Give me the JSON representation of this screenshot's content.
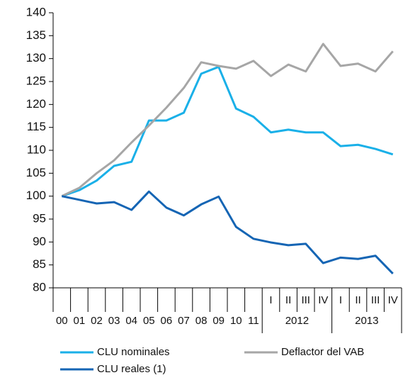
{
  "chart_data": {
    "type": "line",
    "categories": [
      "00",
      "01",
      "02",
      "03",
      "04",
      "05",
      "06",
      "07",
      "08",
      "09",
      "10",
      "11",
      "I",
      "II",
      "III",
      "IV",
      "I",
      "II",
      "III",
      "IV"
    ],
    "category_groups": [
      {
        "label": "2012",
        "count": 4
      },
      {
        "label": "2013",
        "count": 4
      }
    ],
    "series": [
      {
        "name": "CLU nominales",
        "color": "#1ab0e8",
        "values": [
          100,
          101.3,
          103.4,
          106.6,
          107.5,
          116.5,
          116.5,
          118.2,
          126.7,
          128.2,
          119.1,
          117.3,
          113.9,
          114.5,
          113.9,
          113.9,
          110.9,
          111.2,
          110.3,
          109.1
        ]
      },
      {
        "name": "Deflactor del VAB",
        "color": "#a6a6a6",
        "values": [
          100,
          101.8,
          105,
          107.8,
          111.7,
          115.4,
          119.3,
          123.6,
          129.2,
          128.4,
          127.8,
          129.5,
          126.2,
          128.7,
          127.2,
          133.2,
          128.4,
          128.9,
          127.2,
          131.6
        ]
      },
      {
        "name": "CLU reales (1)",
        "color": "#1565b4",
        "values": [
          100,
          99.2,
          98.4,
          98.7,
          97,
          101,
          97.5,
          95.8,
          98.2,
          99.9,
          93.3,
          90.7,
          89.9,
          89.3,
          89.6,
          85.4,
          86.6,
          86.3,
          87,
          83.1
        ]
      }
    ],
    "ylim": [
      80,
      140
    ],
    "yticks": [
      80,
      85,
      90,
      95,
      100,
      105,
      110,
      115,
      120,
      125,
      130,
      135,
      140
    ],
    "grid": false
  }
}
